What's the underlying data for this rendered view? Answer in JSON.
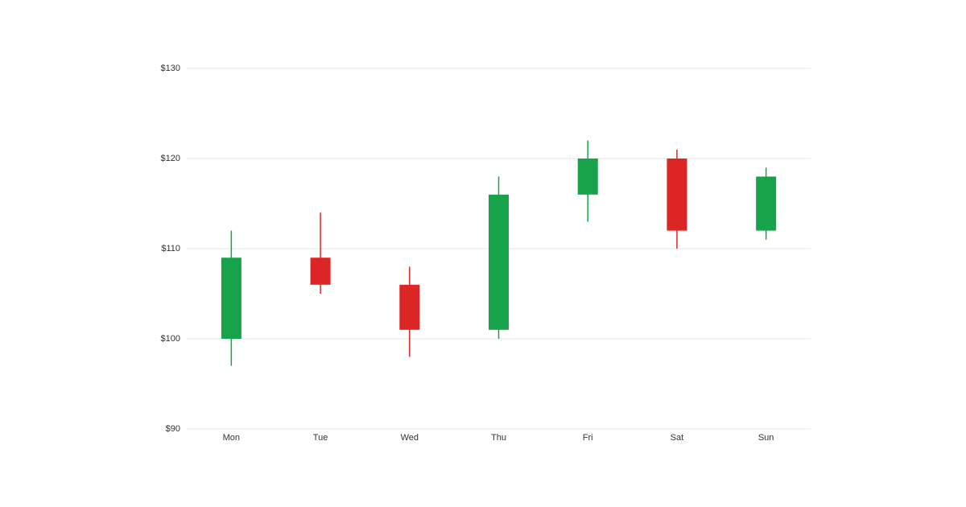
{
  "chart_data": {
    "type": "candlestick",
    "categories": [
      "Mon",
      "Tue",
      "Wed",
      "Thu",
      "Fri",
      "Sat",
      "Sun"
    ],
    "open": [
      100,
      109,
      106,
      101,
      116,
      120,
      112
    ],
    "high": [
      112,
      114,
      108,
      118,
      122,
      121,
      119
    ],
    "low": [
      97,
      105,
      98,
      100,
      113,
      110,
      111
    ],
    "close": [
      109,
      106,
      101,
      116,
      120,
      112,
      118
    ],
    "up_color": "#16a34a",
    "down_color": "#dc2626",
    "ylim": [
      90,
      130
    ],
    "yticks": [
      {
        "value": 90,
        "label": "$90"
      },
      {
        "value": 100,
        "label": "$100"
      },
      {
        "value": 110,
        "label": "$110"
      },
      {
        "value": 120,
        "label": "$120"
      },
      {
        "value": 130,
        "label": "$130"
      }
    ],
    "grid": true
  }
}
